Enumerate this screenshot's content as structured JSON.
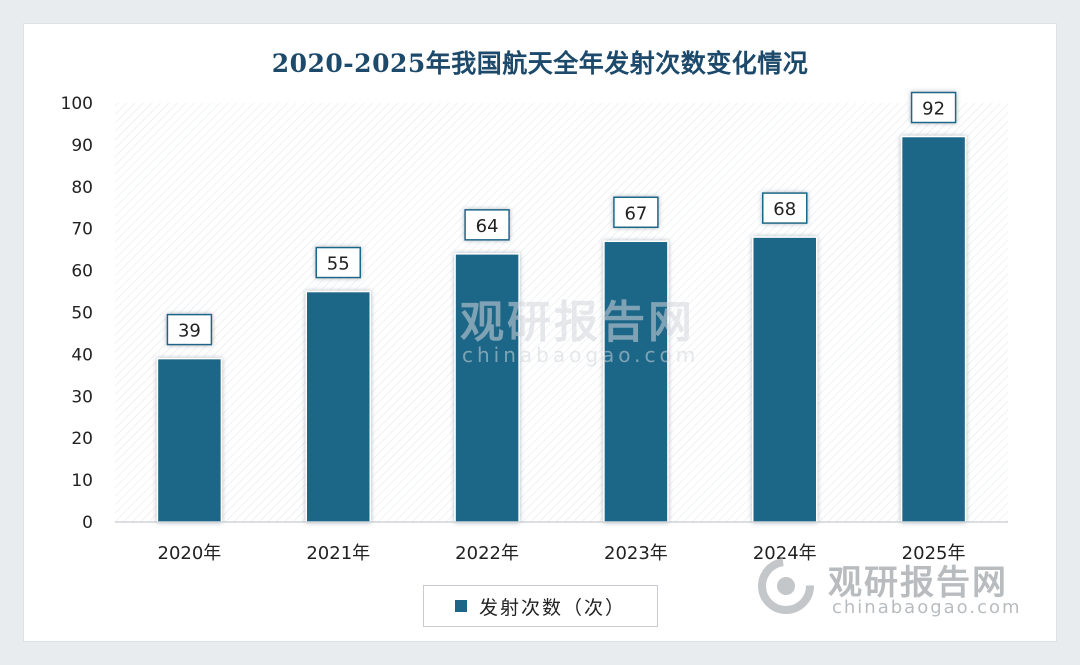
{
  "chart_data": {
    "type": "bar",
    "title": "2020-2025年我国航天全年发射次数变化情况",
    "categories": [
      "2020年",
      "2021年",
      "2022年",
      "2023年",
      "2024年",
      "2025年"
    ],
    "series": [
      {
        "name": "发射次数（次）",
        "values": [
          39,
          55,
          64,
          67,
          68,
          92
        ]
      }
    ],
    "ylim": [
      0,
      100
    ],
    "yticks": [
      0,
      10,
      20,
      30,
      40,
      50,
      60,
      70,
      80,
      90,
      100
    ],
    "xlabel": "",
    "ylabel": "",
    "legend_position": "bottom",
    "bar_color": "#1e6687"
  },
  "watermark": {
    "brand": "观研报告网",
    "site": "chinabaogao.com"
  }
}
